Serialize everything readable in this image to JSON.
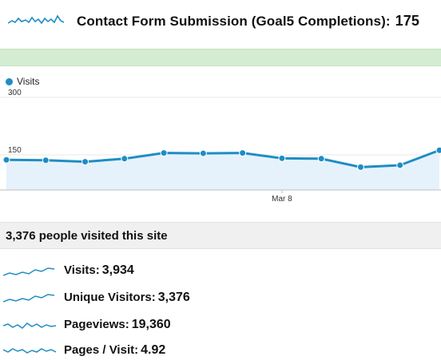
{
  "goal": {
    "title": "Contact Form Submission (Goal5 Completions):",
    "value": "175",
    "sparkline_icon": "sparkline-icon"
  },
  "chart_data": {
    "type": "area",
    "legend": [
      "Visits"
    ],
    "series": [
      {
        "name": "Visits",
        "values": [
          137,
          136,
          132,
          140,
          155,
          154,
          155,
          141,
          140,
          118,
          123,
          162
        ]
      }
    ],
    "y_ticks": [
      150,
      300
    ],
    "ylim": [
      0,
      300
    ],
    "x_tick_labels": [
      "Mar 8"
    ],
    "x_tick_index": 7,
    "colors": {
      "line": "#1f8dc4",
      "fill": "#e6f2fb"
    }
  },
  "summary": {
    "text": "3,376 people visited this site"
  },
  "metrics": [
    {
      "label": "Visits:",
      "value": "3,934"
    },
    {
      "label": "Unique Visitors:",
      "value": "3,376"
    },
    {
      "label": "Pageviews:",
      "value": "19,360"
    },
    {
      "label": "Pages / Visit:",
      "value": "4.92"
    }
  ],
  "colors": {
    "accent": "#1f8dc4",
    "goal_bar": "#d4ecd1",
    "summary_bg": "#f0f0f0"
  }
}
